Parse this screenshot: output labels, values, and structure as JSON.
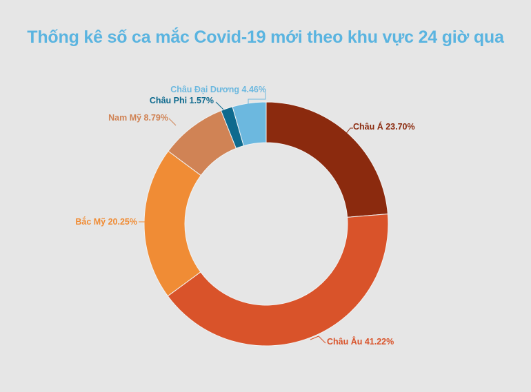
{
  "title": "Thống kê số ca mắc Covid-19 mới theo khu vực 24 giờ qua",
  "chart_data": {
    "type": "pie",
    "subtype": "donut",
    "title": "Thống kê số ca mắc Covid-19 mới theo khu vực 24 giờ qua",
    "start_angle": "12 o'clock, clockwise",
    "categories": [
      "Châu Á",
      "Châu Âu",
      "Bắc Mỹ",
      "Nam Mỹ",
      "Châu Phi",
      "Châu Đại Dương"
    ],
    "values": [
      23.7,
      41.22,
      20.25,
      8.79,
      1.57,
      4.46
    ],
    "unit": "%",
    "colors": [
      "#8b2a0e",
      "#d9532a",
      "#f08c35",
      "#d08355",
      "#0e6a8e",
      "#6cb8df"
    ],
    "labels": [
      "Châu Á 23.70%",
      "Châu Âu 41.22%",
      "Bắc Mỹ 20.25%",
      "Nam Mỹ 8.79%",
      "Châu Phi  1.57%",
      "Châu Đại Dương 4.46%"
    ],
    "label_colors": [
      "#8b2a0e",
      "#d9532a",
      "#f08c35",
      "#d08355",
      "#0e6a8e",
      "#6cb8df"
    ],
    "legend": "none (inline labels)"
  }
}
